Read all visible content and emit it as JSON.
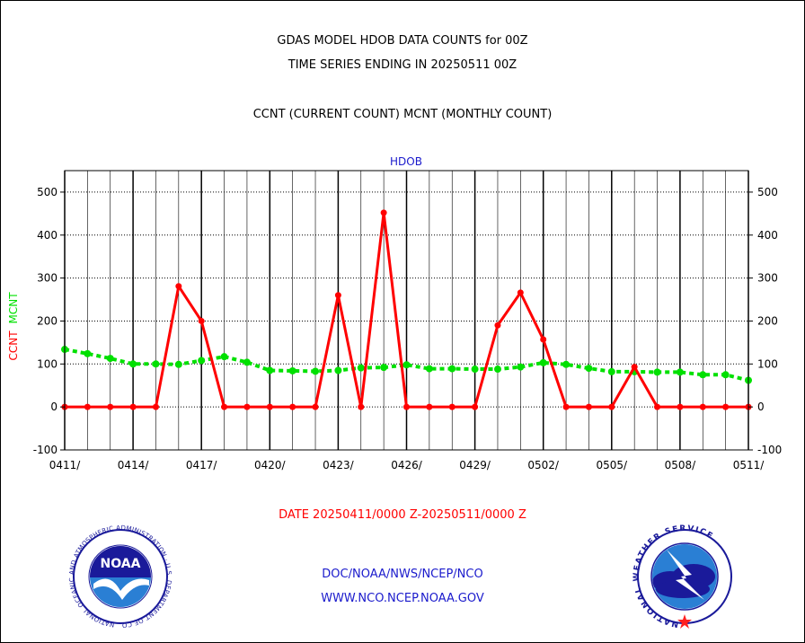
{
  "header": {
    "title_line1": "GDAS MODEL HDOB DATA COUNTS for 00Z",
    "title_line2": "TIME SERIES ENDING IN 20250511 00Z",
    "subtitle": "CCNT (CURRENT COUNT) MCNT (MONTHLY COUNT)"
  },
  "footer": {
    "date_range": "DATE 20250411/0000 Z-20250511/0000 Z",
    "agency": "DOC/NOAA/NWS/NCEP/NCO",
    "website": "WWW.NCO.NCEP.NOAA.GOV",
    "noaa_logo_text": "NOAA",
    "noaa_ring_text": "NATIONAL OCEANIC AND ATMOSPHERIC ADMINISTRATION · U.S. DEPARTMENT OF COMMERCE",
    "nws_ring_text": "NATIONAL WEATHER SERVICE"
  },
  "colors": {
    "ccnt": "#ff0000",
    "mcnt": "#00e000",
    "title_blue": "#1a1acc",
    "date_red": "#ff0000"
  },
  "chart_data": {
    "type": "line",
    "title": "HDOB",
    "ylabel_parts": [
      "CCNT",
      "MCNT"
    ],
    "ylim": [
      -100,
      550
    ],
    "yticks": [
      -100,
      0,
      100,
      200,
      300,
      400,
      500
    ],
    "ytick_labels": [
      "-100",
      "0",
      "100",
      "200",
      "300",
      "400",
      "500"
    ],
    "xtick_labels": [
      "0411/",
      "0414/",
      "0417/",
      "0420/",
      "0423/",
      "0426/",
      "0429/",
      "0502/",
      "0505/",
      "0508/",
      "0511/"
    ],
    "grid": true,
    "x_days": 30,
    "series": [
      {
        "name": "CCNT",
        "values": [
          0,
          0,
          0,
          0,
          0,
          281,
          200,
          0,
          0,
          0,
          0,
          0,
          260,
          0,
          452,
          0,
          0,
          0,
          0,
          190,
          266,
          157,
          0,
          0,
          0,
          93,
          0,
          0,
          0,
          0,
          0
        ]
      },
      {
        "name": "MCNT",
        "values": [
          134,
          124,
          113,
          100,
          100,
          99,
          108,
          117,
          104,
          85,
          84,
          83,
          85,
          91,
          92,
          98,
          89,
          89,
          88,
          88,
          93,
          103,
          99,
          90,
          82,
          82,
          81,
          81,
          75,
          75,
          62
        ]
      }
    ]
  }
}
